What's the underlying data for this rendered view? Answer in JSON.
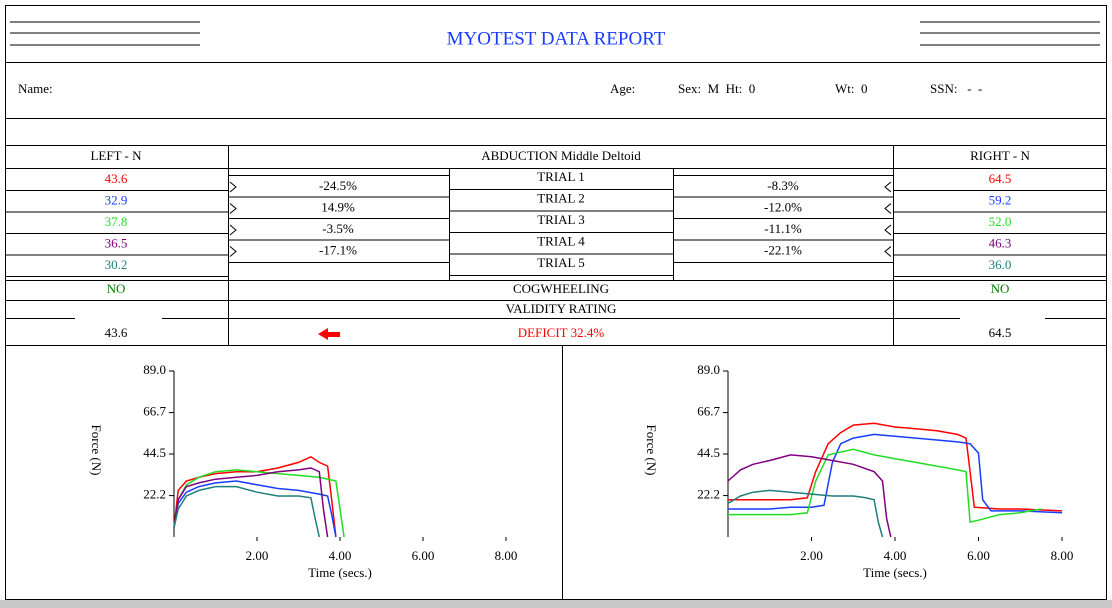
{
  "header": {
    "title": "MYOTEST DATA REPORT"
  },
  "patient": {
    "name_label": "Name:",
    "age_label": "Age:",
    "sex_ht": "Sex:  M  Ht:  0",
    "wt": "Wt:  0",
    "ssn": "SSN:   -  -"
  },
  "table": {
    "left_header": "LEFT - N",
    "test": "ABDUCTION Middle Deltoid",
    "right_header": "RIGHT - N",
    "trials": [
      {
        "label": "TRIAL 1",
        "left": "43.6",
        "right": "64.5",
        "color": "#ff0000"
      },
      {
        "label": "TRIAL 2",
        "left": "32.9",
        "right": "59.2",
        "color": "#1a3cff"
      },
      {
        "label": "TRIAL 3",
        "left": "37.8",
        "right": "52.0",
        "color": "#22dd22"
      },
      {
        "label": "TRIAL 4",
        "left": "36.5",
        "right": "46.3",
        "color": "#800080"
      },
      {
        "label": "TRIAL 5",
        "left": "30.2",
        "right": "36.0",
        "color": "#1f7f7f"
      }
    ],
    "left_diffs": [
      "-24.5%",
      "14.9%",
      "-3.5%",
      "-17.1%"
    ],
    "right_diffs": [
      "-8.3%",
      "-12.0%",
      "-11.1%",
      "-22.1%"
    ],
    "cog_label": "COGWHEELING",
    "cog_left": "NO",
    "cog_right": "NO",
    "cog_color": "#008000",
    "validity_label": "VALIDITY RATING",
    "left_total": "43.6",
    "deficit": "DEFICIT 32.4%",
    "deficit_color": "#ff0000",
    "right_total": "64.5"
  },
  "charts": [
    {
      "type": "line",
      "xlabel": "Time (secs.)",
      "ylabel": "Force (N)",
      "xlim": [
        0,
        8
      ],
      "ylim": [
        0,
        89
      ],
      "xticks": [
        {
          "value": 2,
          "label": "2.00"
        },
        {
          "value": 4,
          "label": "4.00"
        },
        {
          "value": 6,
          "label": "6.00"
        },
        {
          "value": 8,
          "label": "8.00"
        }
      ],
      "yticks": [
        {
          "value": 22.2,
          "label": "22.2"
        },
        {
          "value": 44.5,
          "label": "44.5"
        },
        {
          "value": 66.7,
          "label": "66.7"
        },
        {
          "value": 89,
          "label": "89.0"
        }
      ],
      "series": [
        {
          "color": "#ff0000",
          "x": [
            0,
            0.1,
            0.3,
            0.6,
            1,
            1.5,
            2,
            2.5,
            3,
            3.3,
            3.5,
            3.7,
            3.8,
            3.9
          ],
          "values": [
            5,
            25,
            30,
            32,
            34,
            35,
            35,
            37,
            40,
            43,
            40,
            38,
            20,
            0
          ]
        },
        {
          "color": "#1a3cff",
          "x": [
            0,
            0.1,
            0.3,
            0.6,
            1,
            1.5,
            2,
            2.5,
            3,
            3.5,
            3.7,
            3.8,
            3.9
          ],
          "values": [
            5,
            18,
            24,
            27,
            29,
            30,
            28,
            26,
            25,
            23,
            22,
            12,
            0
          ]
        },
        {
          "color": "#22dd22",
          "x": [
            0,
            0.1,
            0.3,
            0.6,
            1,
            1.5,
            2,
            2.5,
            3,
            3.5,
            3.9,
            4.0,
            4.1
          ],
          "values": [
            5,
            20,
            28,
            32,
            35,
            36,
            35,
            34,
            33,
            32,
            30,
            15,
            0
          ]
        },
        {
          "color": "#800080",
          "x": [
            0,
            0.1,
            0.3,
            0.6,
            1,
            1.5,
            2,
            2.5,
            3,
            3.3,
            3.5,
            3.6,
            3.7
          ],
          "values": [
            5,
            20,
            27,
            29,
            31,
            32,
            33,
            35,
            36,
            37,
            35,
            15,
            0
          ]
        },
        {
          "color": "#1f7f7f",
          "x": [
            0,
            0.1,
            0.3,
            0.6,
            1,
            1.5,
            2,
            2.5,
            3,
            3.3,
            3.4,
            3.5
          ],
          "values": [
            5,
            15,
            22,
            25,
            27,
            27,
            24,
            22,
            22,
            21,
            10,
            0
          ]
        }
      ]
    },
    {
      "type": "line",
      "xlabel": "Time (secs.)",
      "ylabel": "Force (N)",
      "xlim": [
        0,
        8
      ],
      "ylim": [
        0,
        89
      ],
      "xticks": [
        {
          "value": 2,
          "label": "2.00"
        },
        {
          "value": 4,
          "label": "4.00"
        },
        {
          "value": 6,
          "label": "6.00"
        },
        {
          "value": 8,
          "label": "8.00"
        }
      ],
      "yticks": [
        {
          "value": 22.2,
          "label": "22.2"
        },
        {
          "value": 44.5,
          "label": "44.5"
        },
        {
          "value": 66.7,
          "label": "66.7"
        },
        {
          "value": 89,
          "label": "89.0"
        }
      ],
      "series": [
        {
          "color": "#ff0000",
          "x": [
            0,
            0.5,
            1,
            1.5,
            1.9,
            2.1,
            2.4,
            2.7,
            3,
            3.5,
            4,
            4.5,
            5,
            5.5,
            5.7,
            5.8,
            5.9,
            6.5,
            7,
            8
          ],
          "values": [
            20,
            20,
            20,
            20,
            21,
            35,
            50,
            56,
            60,
            61,
            59,
            58,
            57,
            55,
            53,
            35,
            16,
            15,
            15,
            14
          ]
        },
        {
          "color": "#1a3cff",
          "x": [
            0,
            0.5,
            1,
            1.5,
            2,
            2.3,
            2.5,
            2.7,
            3,
            3.5,
            4,
            4.5,
            5,
            5.5,
            5.8,
            6,
            6.1,
            6.3,
            7,
            8
          ],
          "values": [
            15,
            15,
            15,
            16,
            16,
            17,
            40,
            50,
            53,
            55,
            54,
            53,
            52,
            51,
            50,
            45,
            20,
            14,
            14,
            13
          ]
        },
        {
          "color": "#22dd22",
          "x": [
            0,
            0.5,
            1,
            1.5,
            1.9,
            2.1,
            2.4,
            3,
            3.5,
            4,
            4.5,
            5,
            5.5,
            5.7,
            5.8,
            6,
            6.5,
            7,
            7.5
          ],
          "values": [
            12,
            12,
            12,
            12,
            13,
            30,
            44,
            47,
            44,
            42,
            40,
            38,
            36,
            35,
            8,
            9,
            12,
            13,
            15
          ]
        },
        {
          "color": "#800080",
          "x": [
            0,
            0.3,
            0.6,
            1,
            1.5,
            2,
            2.5,
            3,
            3.5,
            3.7,
            3.8,
            3.9
          ],
          "values": [
            30,
            36,
            39,
            41,
            44,
            43,
            41,
            39,
            35,
            30,
            10,
            0
          ]
        },
        {
          "color": "#1f7f7f",
          "x": [
            0,
            0.3,
            0.6,
            1,
            1.5,
            2,
            2.5,
            3,
            3.3,
            3.5,
            3.6,
            3.7
          ],
          "values": [
            18,
            22,
            24,
            25,
            24,
            23,
            22,
            22,
            21,
            20,
            8,
            0
          ]
        }
      ]
    }
  ]
}
